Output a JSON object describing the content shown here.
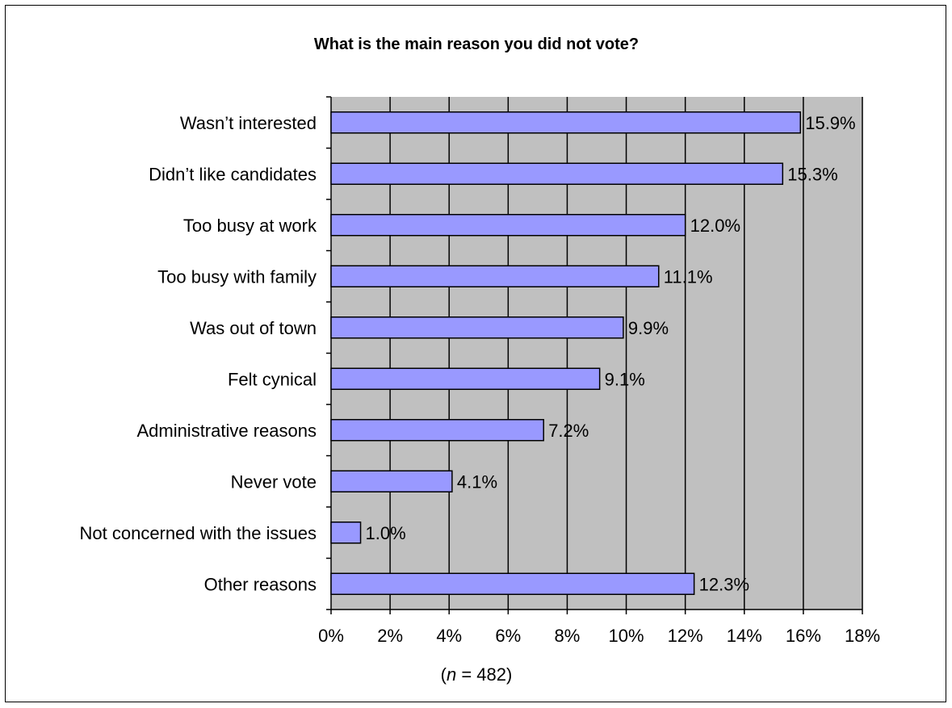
{
  "chart_data": {
    "type": "bar",
    "orientation": "horizontal",
    "title": "What is the main reason you did not vote?",
    "categories": [
      "Wasn’t interested",
      "Didn’t like candidates",
      "Too busy at work",
      "Too busy with family",
      "Was out of town",
      "Felt cynical",
      "Administrative reasons",
      "Never vote",
      "Not concerned with the issues",
      "Other reasons"
    ],
    "values": [
      15.9,
      15.3,
      12.0,
      11.1,
      9.9,
      9.1,
      7.2,
      4.1,
      1.0,
      12.3
    ],
    "value_labels": [
      "15.9%",
      "15.3%",
      "12.0%",
      "11.1%",
      "9.9%",
      "9.1%",
      "7.2%",
      "4.1%",
      "1.0%",
      "12.3%"
    ],
    "xlim": [
      0,
      18
    ],
    "x_ticks": [
      0,
      2,
      4,
      6,
      8,
      10,
      12,
      14,
      16,
      18
    ],
    "x_tick_labels": [
      "0%",
      "2%",
      "4%",
      "6%",
      "8%",
      "10%",
      "12%",
      "14%",
      "16%",
      "18%"
    ],
    "grid": true,
    "legend": "none",
    "note_prefix": "(",
    "note_italic": "n",
    "note_suffix": " = 482)",
    "colors": {
      "bar_fill": "#9999ff",
      "plot_background": "#c0c0c0",
      "bar_stroke": "#000000",
      "gridline": "#000000"
    }
  }
}
